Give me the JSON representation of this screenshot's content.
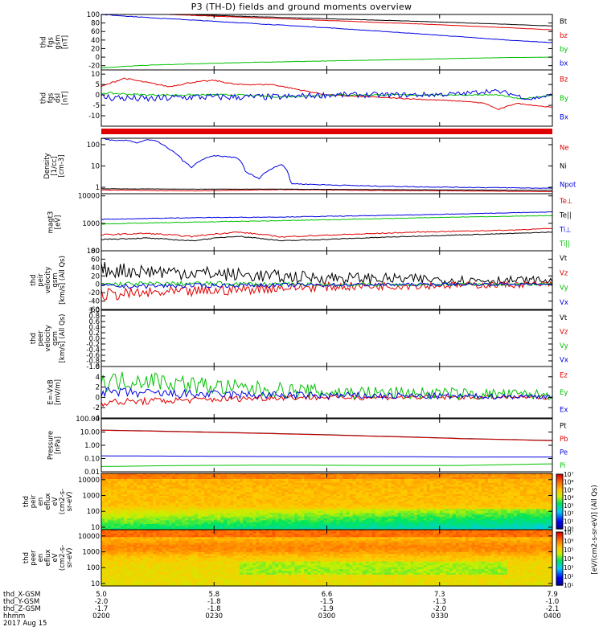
{
  "title": "P3 (TH-D) fields and ground moments overview",
  "footer": {
    "rows": [
      "thd_X-GSM",
      "thd_Y-GSM",
      "thd_Z-GSM",
      "hhmm"
    ],
    "date": "2017 Aug 15",
    "ticks": [
      [
        "5.0",
        "5.8",
        "6.6",
        "7.3",
        "7.9"
      ],
      [
        "-2.0",
        "-1.8",
        "-1.5",
        "-1.3",
        "-1.0"
      ],
      [
        "-1.7",
        "-1.8",
        "-1.9",
        "-2.0",
        "-2.1"
      ],
      [
        "0200",
        "0230",
        "0300",
        "0330",
        "0400"
      ]
    ]
  },
  "colorbar": {
    "label": "[eV/(cm2-s-sr-eV)] (All Qs)",
    "top_ticks": [
      "10^7",
      "10^6",
      "10^5",
      "10^4",
      "10^3",
      "10^2",
      "10^1",
      "10^0"
    ],
    "bottom_ticks": [
      "10^7",
      "10^6",
      "10^5",
      "10^4",
      "10^3",
      "10^2",
      "10^1"
    ]
  },
  "chart_data": [
    {
      "type": "line",
      "ylabel": [
        "thd",
        "fgs",
        "gsm",
        "[nT]"
      ],
      "ylim": [
        -30,
        100
      ],
      "yticks": [
        "100",
        "80",
        "60",
        "40",
        "20",
        "0",
        "-20"
      ],
      "yvals": [
        100,
        80,
        60,
        40,
        20,
        0,
        -20
      ],
      "series": [
        {
          "name": "Bt",
          "color": "#000000",
          "x": [
            0,
            0.1,
            0.3,
            0.5,
            0.7,
            0.9,
            1
          ],
          "y": [
            107,
            103,
            96,
            90,
            84,
            77,
            73
          ]
        },
        {
          "name": "bz",
          "color": "#e00000",
          "x": [
            0,
            0.1,
            0.3,
            0.5,
            0.7,
            0.9,
            1
          ],
          "y": [
            107,
            102,
            94,
            86,
            78,
            69,
            64
          ]
        },
        {
          "name": "by",
          "color": "#00c000",
          "x": [
            0,
            0.1,
            0.3,
            0.5,
            0.7,
            0.9,
            1
          ],
          "y": [
            -25,
            -19,
            -13,
            -9,
            -5,
            -1,
            0
          ]
        },
        {
          "name": "bx",
          "color": "#0000e0",
          "x": [
            0,
            0.1,
            0.3,
            0.5,
            0.7,
            0.9,
            1
          ],
          "y": [
            100,
            93,
            81,
            69,
            55,
            40,
            34
          ]
        }
      ]
    },
    {
      "type": "line",
      "ylabel": [
        "thd",
        "fgs",
        "dsl",
        "[nT]"
      ],
      "ylim": [
        -15,
        12
      ],
      "yticks": [
        "10",
        "5",
        "0",
        "-5",
        "-10"
      ],
      "yvals": [
        10,
        5,
        0,
        -5,
        -10
      ],
      "series": [
        {
          "name": "Bz",
          "color": "#e00000",
          "x": [
            0,
            0.05,
            0.1,
            0.15,
            0.2,
            0.25,
            0.3,
            0.38,
            0.45,
            0.5,
            0.6,
            0.7,
            0.8,
            0.85,
            0.88,
            0.92,
            1
          ],
          "y": [
            4,
            8,
            6,
            4,
            6,
            7,
            5,
            5,
            2,
            0,
            -1,
            -2,
            -3,
            -4,
            -7,
            -4,
            -6
          ]
        },
        {
          "name": "By",
          "color": "#00c000",
          "x": [
            0,
            0.1,
            0.2,
            0.3,
            0.4,
            0.5,
            0.6,
            0.7,
            0.8,
            0.88,
            0.93,
            1
          ],
          "y": [
            1,
            0,
            0,
            0,
            -1,
            0,
            0,
            0,
            0,
            0,
            -2,
            0
          ]
        },
        {
          "name": "Bx",
          "color": "#0000e0",
          "x": [
            0,
            0.1,
            0.2,
            0.3,
            0.4,
            0.5,
            0.6,
            0.7,
            0.8,
            0.86,
            0.9,
            0.95,
            1
          ],
          "y": [
            -1,
            -2,
            -1,
            -1,
            -1,
            0,
            0,
            0,
            0.5,
            2,
            1,
            -2,
            0
          ]
        }
      ]
    },
    {
      "type": "line",
      "ylabel": [
        "Density",
        "[1/cc]",
        "[cm-3]"
      ],
      "log": true,
      "ylim": [
        0.5,
        200
      ],
      "yticks": [
        "100",
        "10",
        "1"
      ],
      "yvals": [
        100,
        10,
        1
      ],
      "series": [
        {
          "name": "Ne",
          "color": "#e00000",
          "x": [
            0,
            0.2,
            0.4,
            0.6,
            0.8,
            1
          ],
          "y": [
            0.75,
            0.68,
            0.78,
            0.72,
            0.68,
            0.62
          ]
        },
        {
          "name": "Ni",
          "color": "#000000",
          "x": [
            0,
            0.2,
            0.4,
            0.6,
            0.8,
            1
          ],
          "y": [
            0.85,
            0.82,
            0.82,
            0.78,
            0.75,
            0.72
          ]
        },
        {
          "name": "Npot",
          "color": "#0000e0",
          "x": [
            0,
            0.03,
            0.06,
            0.08,
            0.1,
            0.12,
            0.15,
            0.18,
            0.2,
            0.22,
            0.25,
            0.27,
            0.3,
            0.32,
            0.35,
            0.37,
            0.4,
            0.42,
            0.45,
            0.5,
            0.6,
            0.7,
            0.8,
            0.9,
            1
          ],
          "y": [
            200,
            150,
            160,
            120,
            170,
            150,
            60,
            18,
            8,
            18,
            30,
            28,
            25,
            5,
            2.5,
            6,
            12,
            1.5,
            1.4,
            1.3,
            1.15,
            1.05,
            1.0,
            0.95,
            0.9
          ]
        }
      ]
    },
    {
      "type": "line",
      "ylabel": [
        "magt3",
        "[eV]"
      ],
      "log": true,
      "ylim": [
        100,
        12000
      ],
      "yticks": [
        "10000",
        "1000",
        "100"
      ],
      "yvals": [
        10000,
        1000,
        100
      ],
      "series": [
        {
          "name": "Te⊥",
          "color": "#e00000",
          "x": [
            0,
            0.1,
            0.2,
            0.3,
            0.4,
            0.5,
            0.6,
            0.7,
            0.8,
            0.9,
            1
          ],
          "y": [
            380,
            430,
            330,
            480,
            320,
            370,
            420,
            480,
            520,
            560,
            650
          ]
        },
        {
          "name": "Te||",
          "color": "#000000",
          "x": [
            0,
            0.1,
            0.2,
            0.3,
            0.4,
            0.5,
            0.6,
            0.7,
            0.8,
            0.9,
            1
          ],
          "y": [
            260,
            290,
            230,
            340,
            230,
            260,
            300,
            340,
            380,
            420,
            480
          ]
        },
        {
          "name": "Ti⊥",
          "color": "#0000e0",
          "x": [
            0,
            0.2,
            0.4,
            0.6,
            0.8,
            1
          ],
          "y": [
            1400,
            1600,
            1700,
            1900,
            2200,
            2600
          ]
        },
        {
          "name": "Ti||",
          "color": "#00c000",
          "x": [
            0,
            0.2,
            0.4,
            0.6,
            0.8,
            1
          ],
          "y": [
            950,
            1100,
            1250,
            1450,
            1700,
            1900
          ]
        }
      ]
    },
    {
      "type": "line",
      "ylabel": [
        "thd",
        "peir",
        "velocity",
        "gsm",
        "[km/s] (All Qs)"
      ],
      "ylim": [
        -60,
        80
      ],
      "yticks": [
        "80",
        "60",
        "40",
        "20",
        "0",
        "-20",
        "-40",
        "-60"
      ],
      "yvals": [
        80,
        60,
        40,
        20,
        0,
        -20,
        -40,
        -60
      ],
      "series": [
        {
          "name": "Vt",
          "color": "#000000",
          "x": [
            0,
            0.2,
            0.4,
            0.6,
            0.8,
            1
          ],
          "y": [
            35,
            28,
            18,
            14,
            10,
            9
          ]
        },
        {
          "name": "Vz",
          "color": "#e00000",
          "x": [
            0,
            0.2,
            0.4,
            0.6,
            0.8,
            1
          ],
          "y": [
            -25,
            -18,
            -8,
            -4,
            -2,
            0
          ]
        },
        {
          "name": "Vy",
          "color": "#00c000",
          "x": [
            0,
            0.2,
            0.4,
            0.6,
            0.8,
            1
          ],
          "y": [
            0,
            2,
            0,
            -1,
            0,
            0
          ]
        },
        {
          "name": "Vx",
          "color": "#0000e0",
          "x": [
            0,
            0.2,
            0.4,
            0.6,
            0.8,
            1
          ],
          "y": [
            -5,
            -3,
            -2,
            -1,
            0,
            0
          ]
        }
      ]
    },
    {
      "type": "line",
      "ylabel": [
        "thd",
        "peer",
        "velocity",
        "gsm",
        "[km/s] (All Qs)"
      ],
      "ylim": [
        -1,
        1
      ],
      "yticks": [
        "1.0",
        "0.8",
        "0.6",
        "0.4",
        "0.2",
        "0.0",
        "-0.2",
        "-0.4",
        "-0.6",
        "-0.8",
        "-1.0"
      ],
      "yvals": [
        1,
        0.8,
        0.6,
        0.4,
        0.2,
        0,
        -0.2,
        -0.4,
        -0.6,
        -0.8,
        -1
      ],
      "series": [
        {
          "name": "Vt",
          "color": "#000000",
          "x": [],
          "y": []
        },
        {
          "name": "Vz",
          "color": "#e00000",
          "x": [],
          "y": []
        },
        {
          "name": "Vy",
          "color": "#00c000",
          "x": [],
          "y": []
        },
        {
          "name": "Vx",
          "color": "#0000e0",
          "x": [],
          "y": []
        }
      ]
    },
    {
      "type": "line",
      "ylabel": [
        "E=-VxB",
        "[mV/m]"
      ],
      "ylim": [
        -4,
        6
      ],
      "yticks": [
        "6",
        "4",
        "2",
        "0",
        "-2",
        "-4"
      ],
      "yvals": [
        6,
        4,
        2,
        0,
        -2,
        -4
      ],
      "series": [
        {
          "name": "Ez",
          "color": "#e00000",
          "x": [
            0,
            0.2,
            0.4,
            0.6,
            0.8,
            1
          ],
          "y": [
            -1,
            -0.5,
            0,
            0,
            0,
            0
          ]
        },
        {
          "name": "Ey",
          "color": "#00c000",
          "x": [
            0,
            0.1,
            0.2,
            0.3,
            0.5,
            0.7,
            0.9,
            1
          ],
          "y": [
            3,
            3.5,
            2.5,
            1.8,
            1.0,
            0.8,
            0.6,
            0.5
          ]
        },
        {
          "name": "Ex",
          "color": "#0000e0",
          "x": [
            0,
            0.2,
            0.4,
            0.6,
            0.8,
            1
          ],
          "y": [
            1,
            0.6,
            0.4,
            0.3,
            0.2,
            0.2
          ]
        }
      ]
    },
    {
      "type": "line",
      "ylabel": [
        "Pressure",
        "[nPa]"
      ],
      "log": true,
      "ylim": [
        0.01,
        100
      ],
      "yticks": [
        "100.00",
        "10.00",
        "1.00",
        "0.10",
        "0.01"
      ],
      "yvals": [
        100,
        10,
        1,
        0.1,
        0.01
      ],
      "series": [
        {
          "name": "Pt",
          "color": "#000000",
          "x": [
            0,
            0.2,
            0.4,
            0.6,
            0.8,
            1
          ],
          "y": [
            14,
            10.5,
            7.5,
            5,
            3.2,
            2.3
          ]
        },
        {
          "name": "Pb",
          "color": "#e00000",
          "x": [
            0,
            0.2,
            0.4,
            0.6,
            0.8,
            1
          ],
          "y": [
            13.5,
            10,
            7.2,
            4.8,
            3.1,
            2.2
          ]
        },
        {
          "name": "Pe",
          "color": "#0000e0",
          "x": [
            0,
            0.2,
            0.4,
            0.6,
            0.8,
            1
          ],
          "y": [
            0.16,
            0.15,
            0.14,
            0.14,
            0.13,
            0.13
          ]
        },
        {
          "name": "Pi",
          "color": "#00c000",
          "x": [
            0,
            0.2,
            0.4,
            0.6,
            0.8,
            0.9,
            1
          ],
          "y": [
            0.025,
            0.03,
            0.032,
            0.03,
            0.03,
            0.035,
            0.04
          ]
        }
      ]
    },
    {
      "type": "heatmap",
      "ylabel": [
        "thd",
        "peir",
        "en",
        "eflux",
        "eV",
        "(cm2-s-",
        "sr-eV)"
      ],
      "log": true,
      "ylim": [
        7,
        25000
      ],
      "yticks": [
        "10000",
        "1000",
        "100",
        "10"
      ],
      "yvals": [
        10000,
        1000,
        100,
        10
      ]
    },
    {
      "type": "heatmap",
      "ylabel": [
        "thd",
        "peer",
        "en",
        "eflux",
        "eV",
        "(cm2-s-",
        "sr-eV)"
      ],
      "log": true,
      "ylim": [
        7,
        25000
      ],
      "yticks": [
        "10000",
        "1000",
        "100",
        "10"
      ],
      "yvals": [
        10000,
        1000,
        100,
        10
      ]
    }
  ]
}
